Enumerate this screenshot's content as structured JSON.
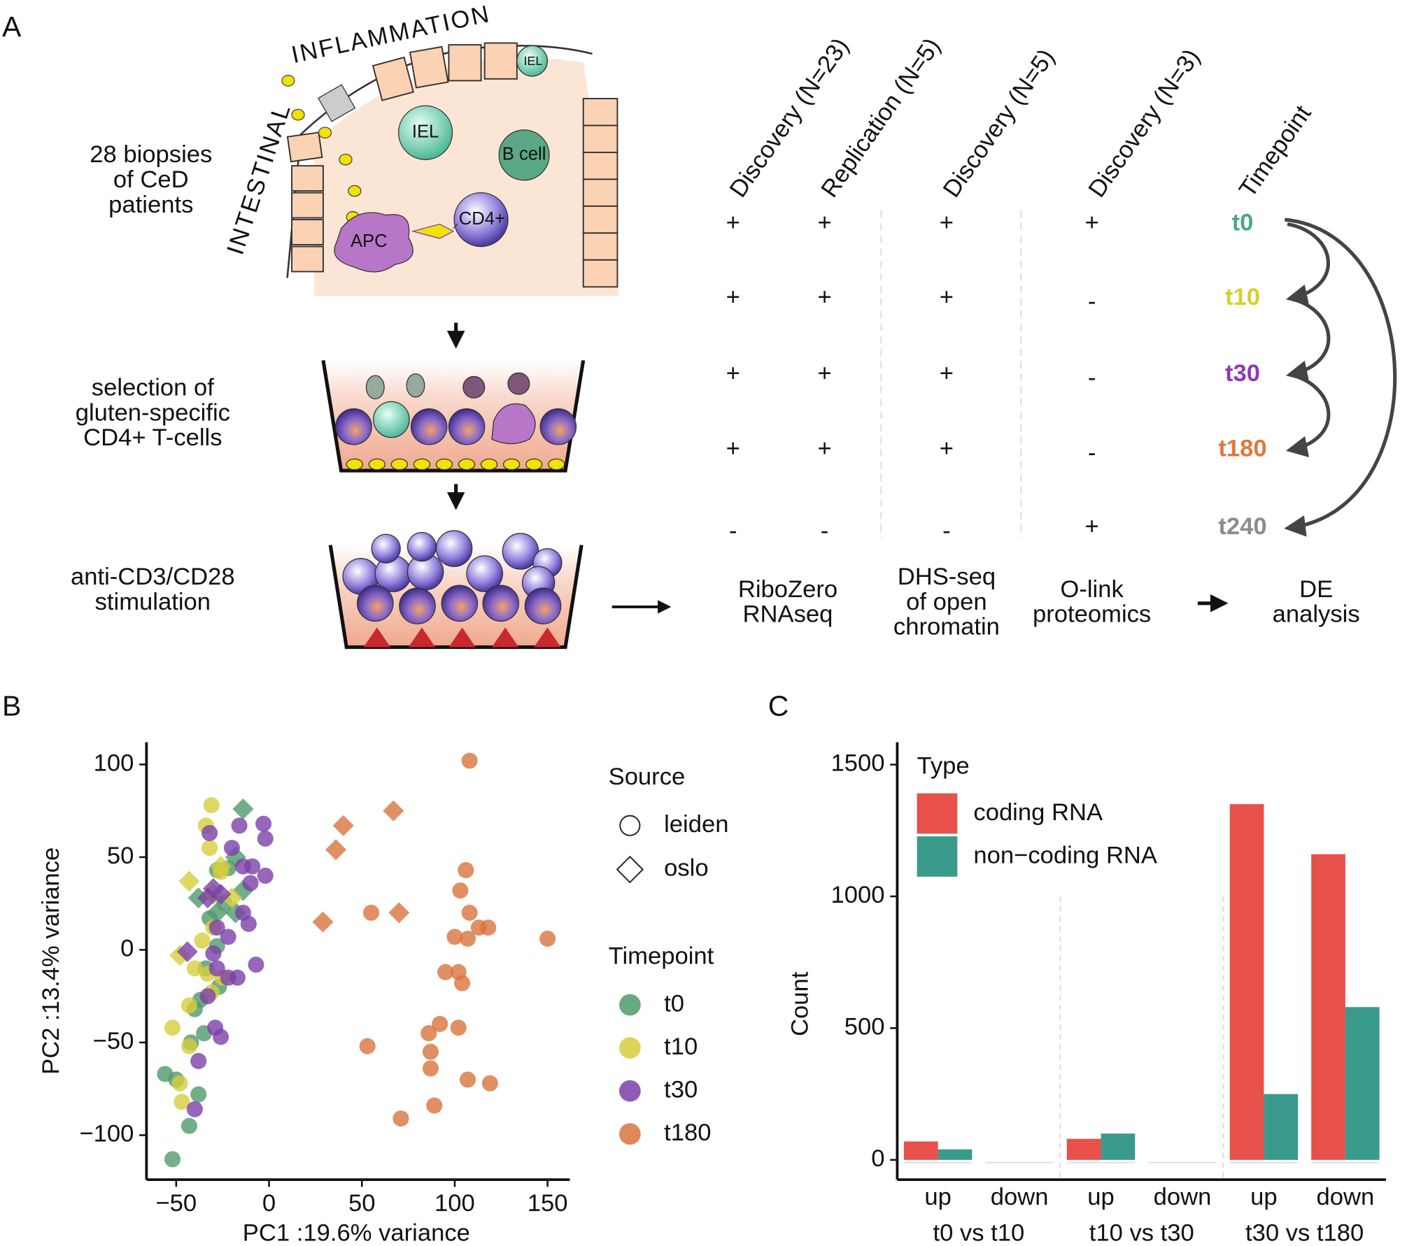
{
  "panel_a": {
    "label": "A",
    "tissue": {
      "top": "INFLAMMATION",
      "side": "INTESTINAL",
      "cells": [
        "IEL",
        "IEL",
        "B cell",
        "CD4+",
        "APC"
      ]
    },
    "steps": [
      [
        "28 biopsies",
        "of CeD",
        "patients"
      ],
      [
        "selection of",
        "gluten-specific",
        "CD4+ T-cells"
      ],
      [
        "anti-CD3/CD28",
        "stimulation"
      ]
    ],
    "table": {
      "headers": [
        "Discovery (N=23)",
        "Replication (N=5)",
        "Discovery (N=5)",
        "Discovery (N=3)",
        "Timepoint"
      ],
      "rows": [
        [
          "+",
          "+",
          "+",
          "+"
        ],
        [
          "+",
          "+",
          "+",
          "-"
        ],
        [
          "+",
          "+",
          "+",
          "-"
        ],
        [
          "+",
          "+",
          "+",
          "-"
        ],
        [
          "-",
          "-",
          "-",
          "+"
        ]
      ],
      "timepoints": [
        {
          "label": "t0",
          "color": "#4aa889"
        },
        {
          "label": "t10",
          "color": "#d6cf2c"
        },
        {
          "label": "t30",
          "color": "#8d3bb5"
        },
        {
          "label": "t180",
          "color": "#e0783c"
        },
        {
          "label": "t240",
          "color": "#8c8c8c"
        }
      ]
    },
    "methods": [
      [
        "RiboZero",
        "RNAseq"
      ],
      [
        "DHS-seq",
        "of open",
        "chromatin"
      ],
      [
        "O-link",
        "proteomics"
      ],
      [
        "DE",
        "analysis"
      ]
    ]
  },
  "chart_data": [
    {
      "type": "scatter",
      "panel": "B",
      "xlabel": "PC1 :19.6% variance",
      "ylabel": "PC2 :13.4% variance",
      "xlim": [
        -66,
        162
      ],
      "ylim": [
        -124,
        112
      ],
      "xticks": [
        {
          "value": -50,
          "label": "−50"
        },
        0,
        50,
        100,
        150
      ],
      "yticks": [
        {
          "value": -100,
          "label": "−100"
        },
        {
          "value": -50,
          "label": "−50"
        },
        0,
        50,
        100
      ],
      "source_legend": {
        "title": "Source",
        "items": [
          "leiden",
          "oslo"
        ]
      },
      "timepoint_legend_title": "Timepoint",
      "series": [
        {
          "name": "t0",
          "color": "#4f9a6c",
          "x": [
            -14,
            -18,
            -38,
            -18,
            -28,
            -14,
            -28,
            -22,
            -24,
            -32,
            -28,
            -34,
            -37,
            -40,
            -35,
            -42,
            -56,
            -50,
            -38,
            -43,
            -52,
            -27
          ],
          "values": [
            76,
            50,
            28,
            20,
            20,
            32,
            43,
            44,
            25,
            17,
            2,
            -10,
            -27,
            -32,
            -45,
            -50,
            -67,
            -70,
            -78,
            -95,
            -113,
            -20
          ],
          "source": [
            "oslo",
            "oslo",
            "oslo",
            "oslo",
            "oslo",
            "oslo",
            "leiden",
            "leiden",
            "leiden",
            "leiden",
            "leiden",
            "leiden",
            "leiden",
            "leiden",
            "leiden",
            "leiden",
            "leiden",
            "leiden",
            "leiden",
            "leiden",
            "leiden",
            "leiden"
          ]
        },
        {
          "name": "t10",
          "color": "#d6cd3c",
          "x": [
            -43,
            -26,
            -30,
            -48,
            -20,
            -31,
            -34,
            -32,
            -26,
            -30,
            -40,
            -33,
            -31,
            -25,
            -52,
            -48,
            -47,
            -43,
            -36,
            -43
          ],
          "values": [
            37,
            45,
            30,
            -3,
            28,
            78,
            67,
            55,
            42,
            12,
            -10,
            -13,
            -23,
            -15,
            -42,
            -72,
            -82,
            -52,
            5,
            -30
          ],
          "source": [
            "oslo",
            "oslo",
            "oslo",
            "oslo",
            "oslo",
            "leiden",
            "leiden",
            "leiden",
            "leiden",
            "leiden",
            "leiden",
            "leiden",
            "leiden",
            "leiden",
            "leiden",
            "leiden",
            "leiden",
            "leiden",
            "leiden",
            "leiden"
          ]
        },
        {
          "name": "t30",
          "color": "#7b40a8",
          "x": [
            -44,
            -33,
            -30,
            -26,
            -32,
            -16,
            -3,
            -2,
            -20,
            -14,
            -9,
            -2,
            -10,
            -14,
            -11,
            -28,
            -22,
            -7,
            -30,
            -28,
            -33,
            -17,
            -29,
            -26,
            -38,
            -40,
            -22
          ],
          "values": [
            -1,
            28,
            33,
            30,
            63,
            67,
            68,
            60,
            55,
            45,
            45,
            40,
            36,
            20,
            14,
            12,
            7,
            -8,
            -2,
            -10,
            -25,
            -15,
            -42,
            -47,
            -60,
            -86,
            -15
          ],
          "source": [
            "oslo",
            "oslo",
            "oslo",
            "oslo",
            "leiden",
            "leiden",
            "leiden",
            "leiden",
            "leiden",
            "leiden",
            "leiden",
            "leiden",
            "leiden",
            "leiden",
            "leiden",
            "leiden",
            "leiden",
            "leiden",
            "leiden",
            "leiden",
            "leiden",
            "leiden",
            "leiden",
            "leiden",
            "leiden",
            "leiden",
            "leiden"
          ]
        },
        {
          "name": "t180",
          "color": "#d9733d",
          "x": [
            40,
            36,
            67,
            29,
            70,
            55,
            108,
            106,
            103,
            108,
            113,
            118,
            100,
            107,
            150,
            95,
            102,
            104,
            92,
            86,
            102,
            53,
            87,
            87,
            107,
            119,
            89,
            71
          ],
          "values": [
            67,
            54,
            75,
            15,
            20,
            20,
            102,
            43,
            32,
            20,
            12,
            12,
            7,
            6,
            6,
            -12,
            -12,
            -18,
            -40,
            -45,
            -42,
            -52,
            -55,
            -64,
            -70,
            -72,
            -84,
            -91
          ],
          "source": [
            "oslo",
            "oslo",
            "oslo",
            "oslo",
            "oslo",
            "leiden",
            "leiden",
            "leiden",
            "leiden",
            "leiden",
            "leiden",
            "leiden",
            "leiden",
            "leiden",
            "leiden",
            "leiden",
            "leiden",
            "leiden",
            "leiden",
            "leiden",
            "leiden",
            "leiden",
            "leiden",
            "leiden",
            "leiden",
            "leiden",
            "leiden",
            "leiden"
          ]
        }
      ]
    },
    {
      "type": "bar",
      "panel": "C",
      "ylabel": "Count",
      "legend_title": "Type",
      "categories": [
        "up",
        "down",
        "up",
        "down",
        "up",
        "down"
      ],
      "groups": [
        "t0 vs t10",
        "t10 vs t30",
        "t30 vs t180"
      ],
      "ylim": [
        -75,
        1585
      ],
      "yticks": [
        0,
        500,
        1000,
        1500
      ],
      "series": [
        {
          "name": "coding RNA",
          "color": "#e8504a",
          "values": [
            70,
            0,
            80,
            0,
            1350,
            1160
          ]
        },
        {
          "name": "non−coding RNA",
          "color": "#3a9a8c",
          "values": [
            40,
            0,
            100,
            0,
            250,
            580
          ]
        }
      ]
    }
  ]
}
